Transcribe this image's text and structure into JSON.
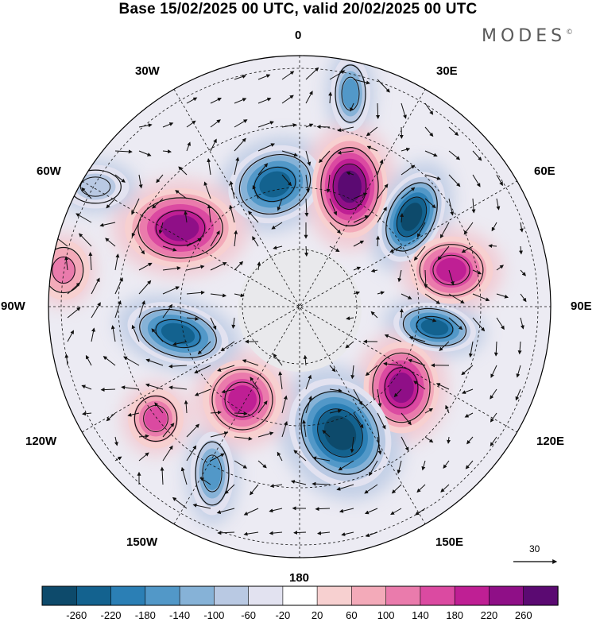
{
  "title": "Base 15/02/2025 00 UTC, valid 20/02/2025 00 UTC",
  "brand": "MODES",
  "brand_mark": "©",
  "longitude_labels": {
    "top": "0",
    "top_left": "30W",
    "top_right": "30E",
    "upper_left": "60W",
    "upper_right": "60E",
    "left": "90W",
    "right": "90E",
    "lower_left": "120W",
    "lower_right": "120E",
    "bottom_left": "150W",
    "bottom_right": "150E",
    "bottom": "180"
  },
  "reference_vector": {
    "label": "30"
  },
  "colorbar": {
    "ticks": [
      "-260",
      "-220",
      "-180",
      "-140",
      "-100",
      "-60",
      "-20",
      "20",
      "60",
      "100",
      "140",
      "180",
      "220",
      "260"
    ],
    "colors": [
      "#0d4a6b",
      "#13628f",
      "#2b7fb5",
      "#5298c8",
      "#86b2d7",
      "#b9c9e3",
      "#e2e2f0",
      "#ffffff",
      "#f7d0d0",
      "#f3aab9",
      "#ea7bac",
      "#db4aa1",
      "#bf1f94",
      "#8f0f87",
      "#5b0a72"
    ]
  },
  "anomaly_centers": [
    {
      "kind": "negative",
      "value": -140,
      "color": "#5298c8"
    },
    {
      "kind": "negative",
      "value": -220,
      "color": "#13628f"
    },
    {
      "kind": "positive",
      "value": 260,
      "color": "#5b0a72"
    },
    {
      "kind": "negative",
      "value": -260,
      "color": "#0d4a6b"
    },
    {
      "kind": "positive",
      "value": 180,
      "color": "#db4aa1"
    },
    {
      "kind": "negative",
      "value": -240,
      "color": "#0d4a6b"
    },
    {
      "kind": "positive",
      "value": 240,
      "color": "#8f0f87"
    },
    {
      "kind": "negative",
      "value": -260,
      "color": "#0d4a6b"
    },
    {
      "kind": "negative",
      "value": -140,
      "color": "#5298c8"
    },
    {
      "kind": "positive",
      "value": 140,
      "color": "#ea7bac"
    },
    {
      "kind": "positive",
      "value": 180,
      "color": "#db4aa1"
    },
    {
      "kind": "negative",
      "value": -240,
      "color": "#0d4a6b"
    },
    {
      "kind": "positive",
      "value": 220,
      "color": "#bf1f94"
    },
    {
      "kind": "positive",
      "value": 100,
      "color": "#f3aab9"
    },
    {
      "kind": "negative",
      "value": -60,
      "color": "#b9c9e3"
    }
  ]
}
